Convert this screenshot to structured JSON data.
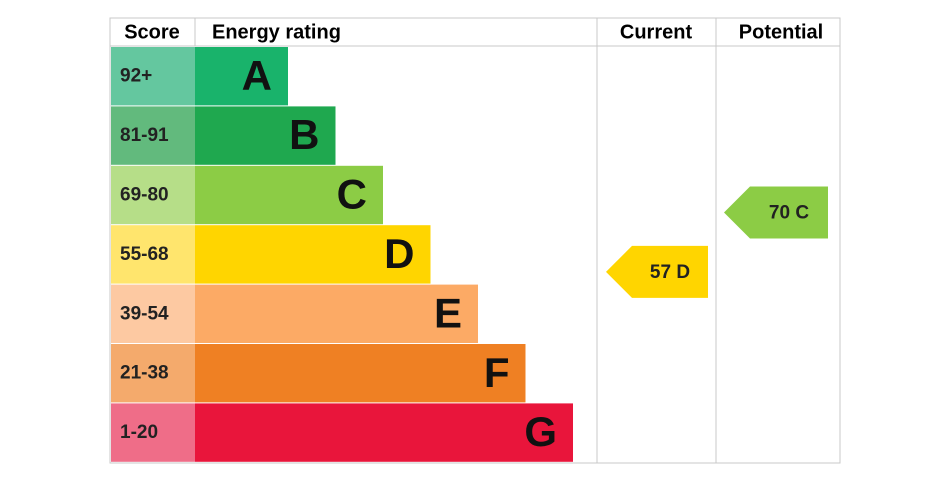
{
  "header": {
    "score": "Score",
    "rating": "Energy rating",
    "current": "Current",
    "potential": "Potential"
  },
  "bands": [
    {
      "score": "92+",
      "letter": "A",
      "color": "#19b36b",
      "light": "#64c79f"
    },
    {
      "score": "81-91",
      "letter": "B",
      "color": "#1fa84f",
      "light": "#62ba7d"
    },
    {
      "score": "69-80",
      "letter": "C",
      "color": "#8ccc45",
      "light": "#b6de88"
    },
    {
      "score": "55-68",
      "letter": "D",
      "color": "#ffd500",
      "light": "#ffe56d"
    },
    {
      "score": "39-54",
      "letter": "E",
      "color": "#fcaa65",
      "light": "#fdc9a2"
    },
    {
      "score": "21-38",
      "letter": "F",
      "color": "#ef8023",
      "light": "#f4aa6c"
    },
    {
      "score": "1-20",
      "letter": "G",
      "color": "#e9153b",
      "light": "#ef6d88"
    }
  ],
  "current": {
    "score": 57,
    "band": "D"
  },
  "potential": {
    "score": 70,
    "band": "C"
  }
}
